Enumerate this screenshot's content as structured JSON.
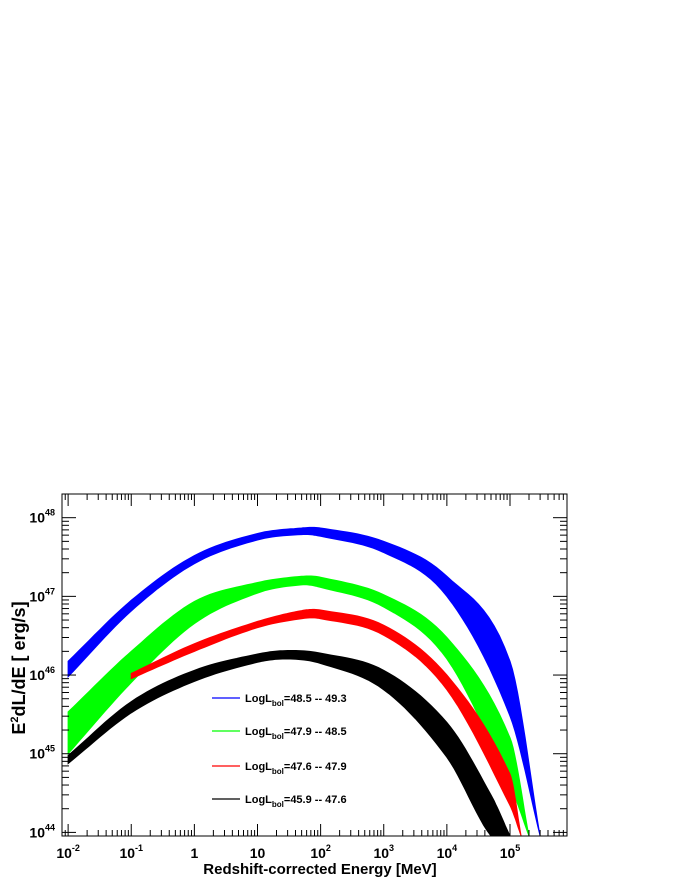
{
  "chart_data": {
    "type": "area",
    "title": "",
    "xlabel": "Redshift-corrected Energy [MeV]",
    "ylabel_parts": [
      "E",
      "2",
      "dL/dE [ erg/s]"
    ],
    "xscale": "log",
    "yscale": "log",
    "xlim": [
      0.008,
      800000
    ],
    "ylim": [
      9e+43,
      2e+48
    ],
    "x_ticks": [
      {
        "value": 0.01,
        "base": "10",
        "exp": "-2"
      },
      {
        "value": 0.1,
        "base": "10",
        "exp": "-1"
      },
      {
        "value": 1,
        "base": "1",
        "exp": ""
      },
      {
        "value": 10,
        "base": "10",
        "exp": ""
      },
      {
        "value": 100,
        "base": "10",
        "exp": "2"
      },
      {
        "value": 1000,
        "base": "10",
        "exp": "3"
      },
      {
        "value": 10000,
        "base": "10",
        "exp": "4"
      },
      {
        "value": 100000,
        "base": "10",
        "exp": "5"
      }
    ],
    "y_ticks": [
      {
        "value": 1e+44,
        "base": "10",
        "exp": "44"
      },
      {
        "value": 1e+45,
        "base": "10",
        "exp": "45"
      },
      {
        "value": 1e+46,
        "base": "10",
        "exp": "46"
      },
      {
        "value": 1e+47,
        "base": "10",
        "exp": "47"
      },
      {
        "value": 1e+48,
        "base": "10",
        "exp": "48"
      }
    ],
    "legend_position": "center-bottom",
    "series": [
      {
        "name": "LogL_bol=48.5 -- 49.3",
        "legend_parts": [
          "LogL",
          "bol",
          "=48.5 -- 49.3"
        ],
        "color": "#0000ff",
        "x": [
          0.01,
          0.1,
          1,
          10,
          50,
          100,
          1000,
          10000,
          100000,
          300000
        ],
        "lower": [
          9.5e+45,
          6.5e+46,
          2.6e+47,
          5.2e+47,
          6.1e+47,
          5.8e+47,
          3.6e+47,
          1e+47,
          3e+45,
          9e+43
        ],
        "upper": [
          1.5e+46,
          8.9e+46,
          3.3e+47,
          6.3e+47,
          7.4e+47,
          7.4e+47,
          5e+47,
          1.8e+47,
          1.5e+46,
          9e+43
        ]
      },
      {
        "name": "LogL_bol=47.9 -- 48.5",
        "legend_parts": [
          "LogL",
          "bol",
          "=47.9 -- 48.5"
        ],
        "color": "#00ff00",
        "x": [
          0.01,
          0.1,
          1,
          10,
          50,
          100,
          1000,
          10000,
          100000,
          200000
        ],
        "lower": [
          1e+45,
          8e+45,
          4.5e+46,
          1.1e+47,
          1.4e+47,
          1.3e+47,
          7.3e+46,
          1.6e+46,
          4e+44,
          9e+43
        ],
        "upper": [
          3.4e+45,
          2e+46,
          8.6e+46,
          1.5e+47,
          1.8e+47,
          1.75e+47,
          1.05e+47,
          3e+46,
          1.6e+45,
          9e+43
        ]
      },
      {
        "name": "LogL_bol=47.6 -- 47.9",
        "legend_parts": [
          "LogL",
          "bol",
          "=47.6 -- 47.9"
        ],
        "color": "#ff0000",
        "x": [
          0.1,
          1,
          10,
          50,
          100,
          1000,
          10000,
          100000,
          150000
        ],
        "lower": [
          9e+45,
          2e+46,
          4e+46,
          5.2e+46,
          5.2e+46,
          3.2e+46,
          6.5e+45,
          2.2e+44,
          9e+43
        ],
        "upper": [
          1.05e+46,
          2.5e+46,
          4.8e+46,
          6.6e+46,
          6.7e+46,
          4.3e+46,
          1e+46,
          5.5e+44,
          9e+43
        ]
      },
      {
        "name": "LogL_bol=45.9 -- 47.6",
        "legend_parts": [
          "LogL",
          "bol",
          "=45.9 -- 47.6"
        ],
        "color": "#000000",
        "x": [
          0.01,
          0.1,
          1,
          10,
          30,
          100,
          1000,
          10000,
          50000,
          100000
        ],
        "lower": [
          7.5e+44,
          3.3e+45,
          8.3e+45,
          1.45e+46,
          1.6e+46,
          1.4e+46,
          6.5e+45,
          9e+44,
          9e+43,
          9e+43
        ],
        "upper": [
          9.5e+44,
          4.6e+45,
          1.15e+46,
          1.85e+46,
          2.05e+46,
          1.9e+46,
          1.15e+46,
          2.5e+45,
          3e+44,
          9e+43
        ]
      }
    ]
  }
}
